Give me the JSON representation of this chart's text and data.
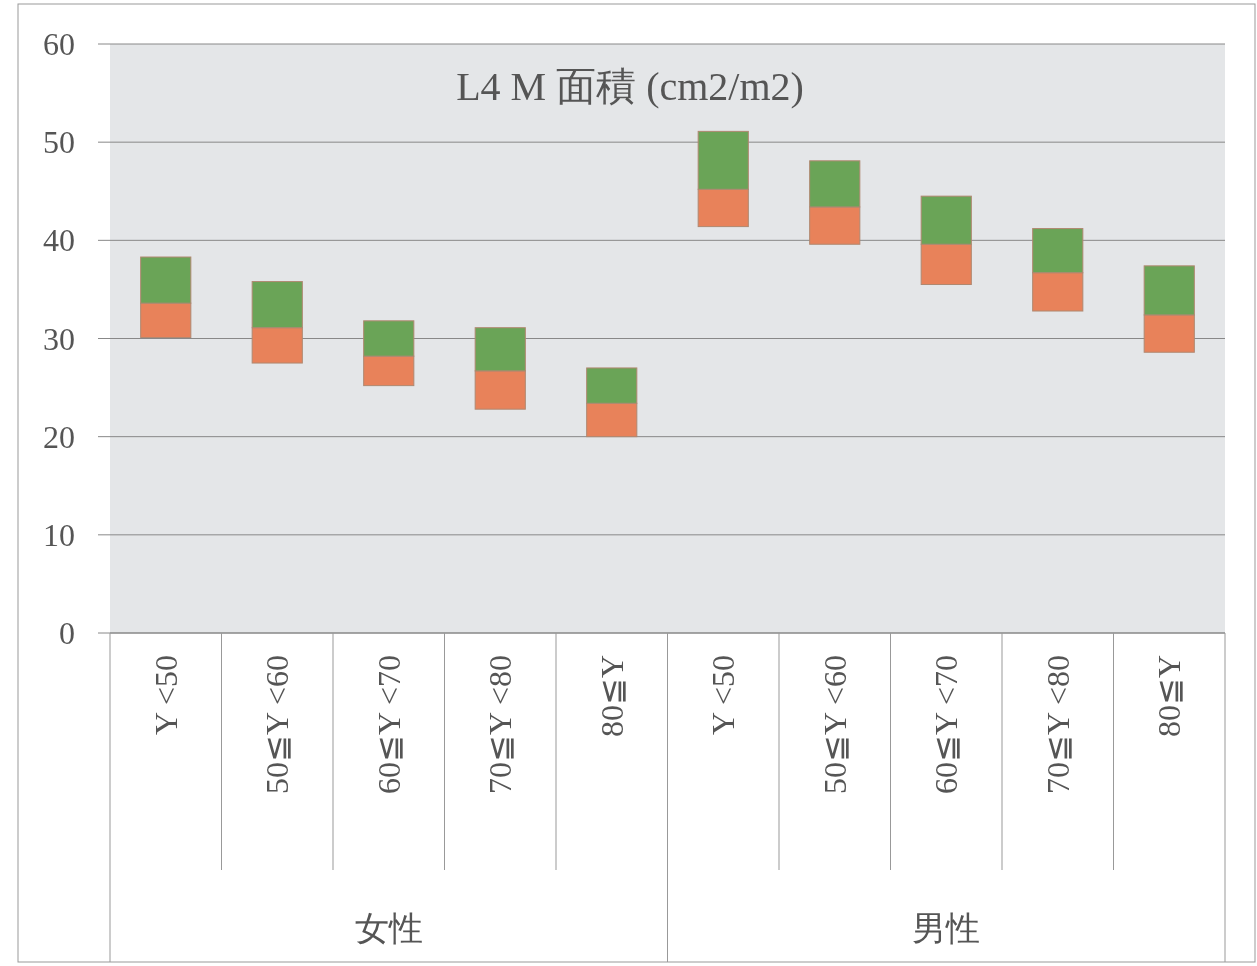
{
  "chart_data": {
    "type": "bar",
    "title": "L4 M 面積 (cm2/m2)",
    "grid": "y",
    "categories": [
      "Y <50",
      "50≦Y <60",
      "60≦Y <70",
      "70≦Y <80",
      "80≦Y",
      "Y <50",
      "50≦Y <60",
      "60≦Y <70",
      "70≦Y <80",
      "80≦Y"
    ],
    "series": [
      {
        "color": "#e8825a",
        "base": [
          30.1,
          27.5,
          25.2,
          22.8,
          20.0,
          41.4,
          39.6,
          35.5,
          32.8,
          28.6
        ],
        "values": [
          3.5,
          3.6,
          3.0,
          3.9,
          3.4,
          3.8,
          3.8,
          4.1,
          3.9,
          3.8
        ]
      },
      {
        "color": "#6aa457",
        "base": [
          33.6,
          31.1,
          28.2,
          26.7,
          23.4,
          45.2,
          43.4,
          39.6,
          36.7,
          32.4
        ],
        "values": [
          4.7,
          4.7,
          3.6,
          4.4,
          3.6,
          5.9,
          4.7,
          4.9,
          4.5,
          5.0
        ]
      }
    ],
    "ylim": [
      0,
      60
    ],
    "yticks": [
      0,
      10,
      20,
      30,
      40,
      50,
      60
    ],
    "annotations": [
      "女性",
      "男性"
    ]
  }
}
